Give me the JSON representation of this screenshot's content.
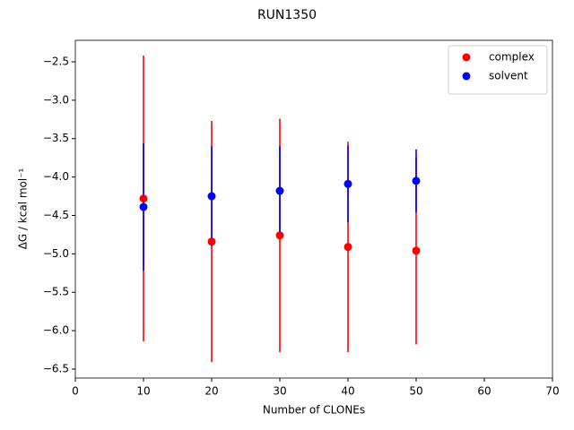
{
  "chart_data": {
    "type": "errorbar",
    "title": "RUN1350",
    "x_label": "Number of CLONEs",
    "y_label": "ΔG / kcal mol⁻¹",
    "x": [
      10,
      20,
      30,
      40,
      50
    ],
    "series": [
      {
        "name": "complex",
        "color": "#ff0000",
        "values": [
          -4.28,
          -4.84,
          -4.76,
          -4.91,
          -4.96
        ],
        "errors": [
          1.86,
          1.57,
          1.52,
          1.37,
          1.22
        ]
      },
      {
        "name": "solvent",
        "color": "#0000ff",
        "values": [
          -4.39,
          -4.25,
          -4.18,
          -4.09,
          -4.05
        ],
        "errors": [
          0.83,
          0.65,
          0.58,
          0.5,
          0.41
        ]
      }
    ],
    "xlim": [
      0,
      70
    ],
    "xticks": [
      0,
      10,
      20,
      30,
      40,
      50,
      60,
      70
    ],
    "ylim": [
      -6.617,
      -2.22
    ],
    "yticks": [
      {
        "value": -2.5,
        "label": "−2.5"
      },
      {
        "value": -3.0,
        "label": "−3.0"
      },
      {
        "value": -3.5,
        "label": "−3.5"
      },
      {
        "value": -4.0,
        "label": "−4.0"
      },
      {
        "value": -4.5,
        "label": "−4.5"
      },
      {
        "value": -5.0,
        "label": "−5.0"
      },
      {
        "value": -5.5,
        "label": "−5.5"
      },
      {
        "value": -6.0,
        "label": "−6.0"
      },
      {
        "value": -6.5,
        "label": "−6.5"
      }
    ],
    "legend": "upper right",
    "grid": false
  }
}
